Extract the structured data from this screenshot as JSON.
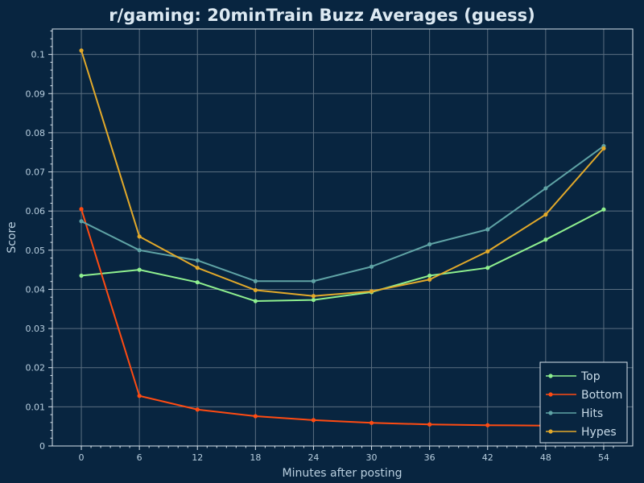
{
  "chart_data": {
    "type": "line",
    "title": "r/gaming: 20minTrain Buzz Averages (guess)",
    "xlabel": "Minutes after posting",
    "ylabel": "Score",
    "x": [
      0,
      6,
      12,
      18,
      24,
      30,
      36,
      42,
      48,
      54
    ],
    "xticks": [
      "0",
      "6",
      "12",
      "18",
      "24",
      "30",
      "36",
      "42",
      "48",
      "54"
    ],
    "yticks": [
      "0",
      "0.01",
      "0.02",
      "0.03",
      "0.04",
      "0.05",
      "0.06",
      "0.07",
      "0.08",
      "0.09",
      "0.1"
    ],
    "xlim": [
      -3,
      57
    ],
    "ylim": [
      0,
      0.1065
    ],
    "grid": true,
    "legend": "bottom-right",
    "series": [
      {
        "name": "Top",
        "color": "#8ff08f",
        "values": [
          0.0435,
          0.045,
          0.0418,
          0.037,
          0.0373,
          0.0393,
          0.0435,
          0.0455,
          0.0527,
          0.0604
        ]
      },
      {
        "name": "Bottom",
        "color": "#ff4b12",
        "values": [
          0.0605,
          0.0128,
          0.0093,
          0.0076,
          0.0066,
          0.0059,
          0.0055,
          0.0053,
          0.0052,
          0.0052
        ]
      },
      {
        "name": "Hits",
        "color": "#5fa3a5",
        "values": [
          0.0574,
          0.05,
          0.0474,
          0.0421,
          0.0421,
          0.0458,
          0.0515,
          0.0553,
          0.0658,
          0.0766
        ]
      },
      {
        "name": "Hypes",
        "color": "#e2a92a",
        "values": [
          0.101,
          0.0535,
          0.0455,
          0.0398,
          0.0383,
          0.0395,
          0.0425,
          0.0497,
          0.0591,
          0.076
        ]
      }
    ]
  }
}
